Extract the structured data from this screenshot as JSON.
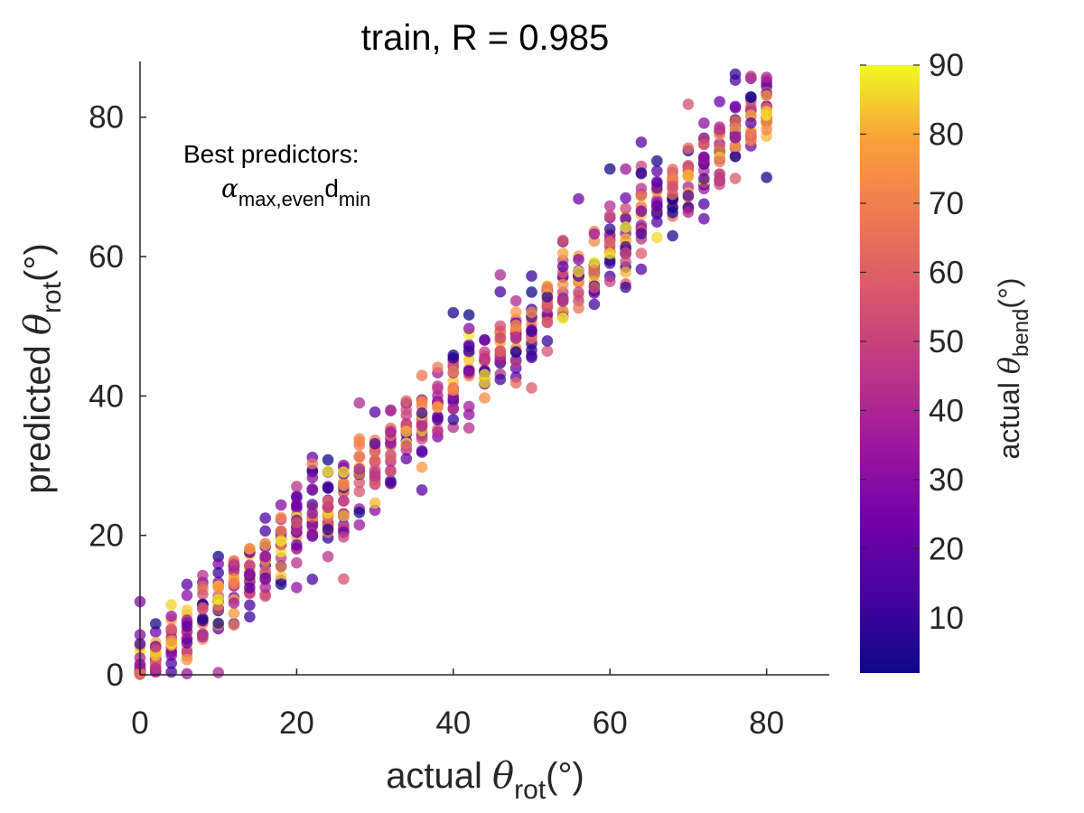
{
  "chart_data": {
    "type": "scatter",
    "title": "train, R = 0.985",
    "xlabel": {
      "prefix": "actual ",
      "symbol": "θ",
      "subscript": "rot",
      "unit": "(°)"
    },
    "ylabel": {
      "prefix": "predicted ",
      "symbol": "θ",
      "subscript": "rot",
      "unit": "(°)"
    },
    "xlim": [
      0,
      88
    ],
    "ylim": [
      0,
      88
    ],
    "xticks": [
      "0",
      "20",
      "40",
      "60",
      "80"
    ],
    "yticks": [
      "0",
      "20",
      "40",
      "60",
      "80"
    ],
    "grid": false,
    "colormap": "plasma",
    "colorbar": {
      "label": {
        "prefix": "actual ",
        "symbol": "θ",
        "subscript": "bend",
        "unit": "(°)"
      },
      "range": [
        2,
        90
      ],
      "ticks": [
        "10",
        "20",
        "30",
        "40",
        "50",
        "60",
        "70",
        "80",
        "90"
      ]
    },
    "annotation": {
      "line1": "Best predictors:",
      "symbol": "α",
      "sub1": "max,even",
      "base2": "d",
      "sub2": "min"
    },
    "points_description_generated": true,
    "x_values_step": 2,
    "x_range": [
      0,
      80
    ],
    "color_values_range": [
      2,
      90
    ],
    "marker_alpha": 0.75
  }
}
